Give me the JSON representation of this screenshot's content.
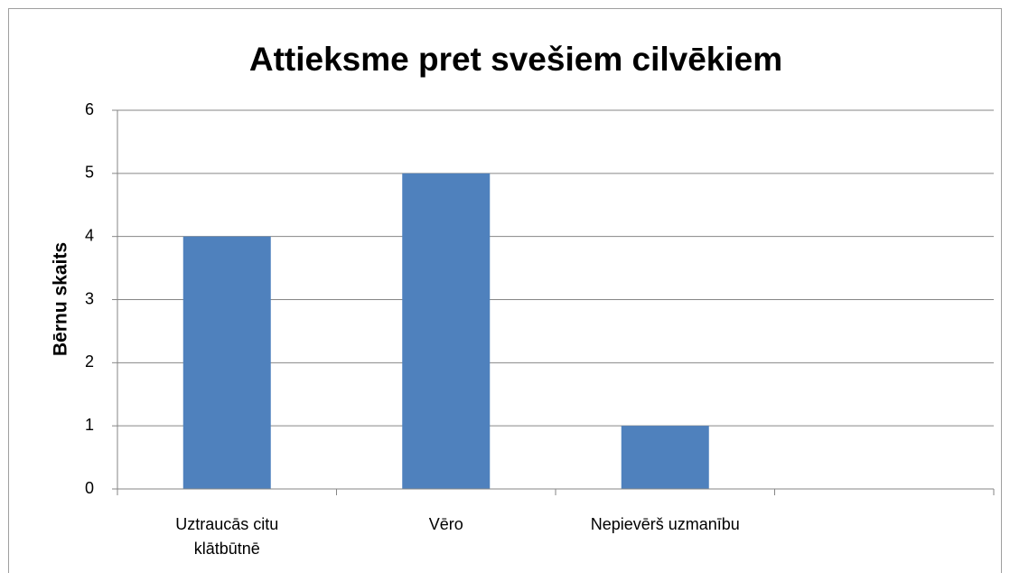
{
  "chart_data": {
    "type": "bar",
    "title": "Attieksme pret svešiem cilvēkiem",
    "y_label": "Bērnu skaits",
    "categories": [
      "Uztraucās citu klātbūtnē",
      "Vēro",
      "Nepievērš uzmanību",
      null
    ],
    "values": [
      4,
      5,
      1,
      null
    ],
    "color": "#4f81bd",
    "ylim": [
      0,
      6
    ],
    "yticks": [
      0,
      1,
      2,
      3,
      4,
      5,
      6
    ],
    "grid": true
  }
}
